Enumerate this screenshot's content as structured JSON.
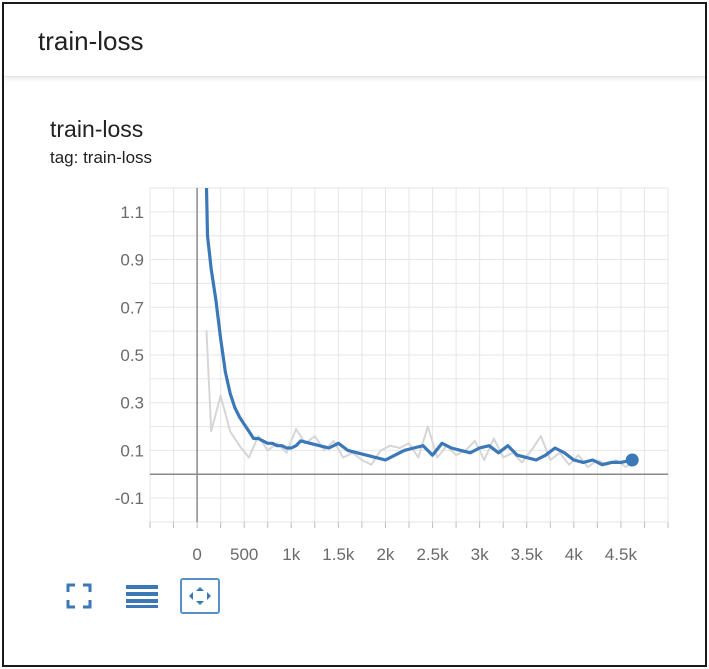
{
  "panel": {
    "title": "train-loss"
  },
  "card": {
    "title": "train-loss",
    "tag": "tag: train-loss"
  },
  "toolbar": {
    "expand_icon": "expand-icon",
    "data_table_icon": "data-table-icon",
    "fit_domain_icon": "fit-domain-icon"
  },
  "colors": {
    "smoothed": "#3b78b8",
    "raw": "#d6d6d6",
    "grid": "#e6e6e6",
    "axis": "#8a8a8a",
    "tick_text": "#6b6b6b"
  },
  "chart_data": {
    "type": "line",
    "title": "train-loss",
    "xlabel": "",
    "ylabel": "",
    "xlim": [
      -500,
      5000
    ],
    "ylim": [
      -0.2,
      1.2
    ],
    "x_ticks": [
      0,
      500,
      1000,
      1500,
      2000,
      2500,
      3000,
      3500,
      4000,
      4500
    ],
    "x_tick_labels": [
      "0",
      "500",
      "1k",
      "1.5k",
      "2k",
      "2.5k",
      "3k",
      "3.5k",
      "4k",
      "4.5k"
    ],
    "y_ticks": [
      1.1,
      0.9,
      0.7,
      0.5,
      0.3,
      0.1,
      -0.1
    ],
    "y_tick_labels": [
      "1.1",
      "0.9",
      "0.7",
      "0.5",
      "0.3",
      "0.1",
      "-0.1"
    ],
    "grid": true,
    "series": [
      {
        "role": "raw",
        "x": [
          100,
          150,
          250,
          350,
          450,
          550,
          650,
          750,
          850,
          950,
          1050,
          1150,
          1250,
          1350,
          1450,
          1550,
          1650,
          1750,
          1850,
          1950,
          2050,
          2150,
          2250,
          2350,
          2450,
          2550,
          2650,
          2750,
          2850,
          2950,
          3050,
          3150,
          3250,
          3350,
          3450,
          3550,
          3650,
          3750,
          3850,
          3950,
          4050,
          4150,
          4250,
          4350,
          4450,
          4550,
          4620
        ],
        "y": [
          0.6,
          0.18,
          0.33,
          0.18,
          0.12,
          0.07,
          0.16,
          0.1,
          0.13,
          0.09,
          0.19,
          0.13,
          0.16,
          0.1,
          0.14,
          0.07,
          0.09,
          0.06,
          0.04,
          0.1,
          0.12,
          0.11,
          0.13,
          0.07,
          0.2,
          0.07,
          0.12,
          0.08,
          0.1,
          0.14,
          0.06,
          0.15,
          0.07,
          0.09,
          0.05,
          0.1,
          0.16,
          0.06,
          0.09,
          0.04,
          0.08,
          0.03,
          0.06,
          0.04,
          0.06,
          0.03,
          0.05
        ]
      },
      {
        "role": "smoothed",
        "x": [
          100,
          110,
          150,
          200,
          250,
          300,
          350,
          400,
          450,
          500,
          550,
          600,
          650,
          700,
          750,
          800,
          850,
          900,
          950,
          1000,
          1050,
          1100,
          1200,
          1300,
          1400,
          1500,
          1600,
          1700,
          1800,
          1900,
          2000,
          2100,
          2200,
          2300,
          2400,
          2500,
          2600,
          2700,
          2800,
          2900,
          3000,
          3100,
          3200,
          3300,
          3400,
          3500,
          3600,
          3700,
          3800,
          3900,
          4000,
          4100,
          4200,
          4300,
          4400,
          4500,
          4620
        ],
        "y": [
          1.2,
          1.0,
          0.86,
          0.73,
          0.57,
          0.43,
          0.34,
          0.28,
          0.24,
          0.21,
          0.18,
          0.15,
          0.15,
          0.14,
          0.13,
          0.13,
          0.12,
          0.12,
          0.11,
          0.11,
          0.12,
          0.14,
          0.13,
          0.12,
          0.11,
          0.13,
          0.1,
          0.09,
          0.08,
          0.07,
          0.06,
          0.08,
          0.1,
          0.11,
          0.12,
          0.08,
          0.13,
          0.11,
          0.1,
          0.09,
          0.11,
          0.12,
          0.09,
          0.12,
          0.08,
          0.07,
          0.06,
          0.08,
          0.11,
          0.09,
          0.06,
          0.05,
          0.06,
          0.04,
          0.05,
          0.05,
          0.06
        ]
      }
    ],
    "last_point": {
      "x": 4620,
      "y": 0.06
    }
  }
}
